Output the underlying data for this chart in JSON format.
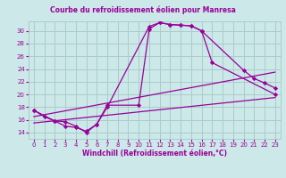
{
  "title": "Courbe du refroidissement éolien pour Manresa",
  "xlabel": "Windchill (Refroidissement éolien,°C)",
  "bg_color": "#cce8e8",
  "grid_color": "#aacccc",
  "line_color": "#990099",
  "spine_color": "#aacccc",
  "xlim": [
    -0.5,
    23.5
  ],
  "ylim": [
    13.0,
    31.5
  ],
  "xticks": [
    0,
    1,
    2,
    3,
    4,
    5,
    6,
    7,
    8,
    9,
    10,
    11,
    12,
    13,
    14,
    15,
    16,
    17,
    18,
    19,
    20,
    21,
    22,
    23
  ],
  "yticks": [
    14,
    16,
    18,
    20,
    22,
    24,
    26,
    28,
    30
  ],
  "series": [
    {
      "x": [
        0,
        1,
        2,
        3,
        4,
        5,
        6,
        7,
        11,
        12,
        13,
        14,
        15,
        16,
        17,
        23
      ],
      "y": [
        17.5,
        16.5,
        15.8,
        15.7,
        15.0,
        14.0,
        15.3,
        18.0,
        30.7,
        31.3,
        31.0,
        30.9,
        30.8,
        30.0,
        25.0,
        20.0
      ],
      "marker": true
    },
    {
      "x": [
        0,
        2,
        3,
        4,
        5,
        6,
        7,
        10,
        11,
        12,
        13,
        14,
        15,
        16,
        20,
        21,
        22,
        23
      ],
      "y": [
        17.5,
        15.8,
        15.0,
        14.8,
        14.2,
        15.3,
        18.3,
        18.3,
        30.3,
        31.3,
        31.0,
        30.9,
        30.8,
        30.0,
        23.8,
        22.5,
        21.8,
        21.0
      ],
      "marker": true
    },
    {
      "x": [
        0,
        23
      ],
      "y": [
        15.5,
        19.5
      ],
      "marker": false
    },
    {
      "x": [
        0,
        23
      ],
      "y": [
        16.5,
        23.5
      ],
      "marker": false
    }
  ]
}
